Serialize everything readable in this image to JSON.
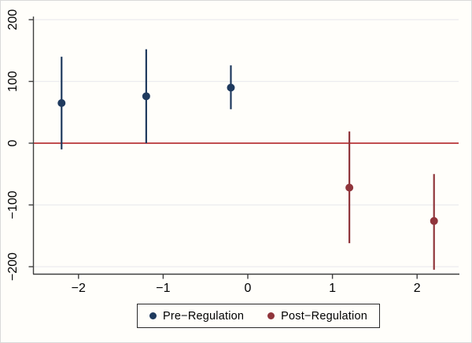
{
  "figure": {
    "background": "#fffefa",
    "border_color": "#d9d9d9"
  },
  "chart_data": {
    "type": "scatter",
    "subtype": "coefficient-plot-with-confidence-intervals",
    "title": "",
    "xlabel": "",
    "ylabel": "",
    "x_ticks": [
      -2,
      -1,
      0,
      1,
      2
    ],
    "y_ticks": [
      -200,
      -100,
      0,
      100,
      200
    ],
    "xlim": [
      -2.53,
      2.5
    ],
    "ylim": [
      -218,
      204
    ],
    "grid": true,
    "gridline_color": "#ececef",
    "axis_color": "#3f3f3f",
    "tick_label_color": "#000000",
    "zero_line": {
      "y": 0,
      "color": "#b83438"
    },
    "series": [
      {
        "name": "Pre−Regulation",
        "color": "#1f3a5e",
        "marker": "circle",
        "points": [
          {
            "x": -2.2,
            "y": 65,
            "ci_low": -10,
            "ci_high": 140
          },
          {
            "x": -1.2,
            "y": 76,
            "ci_low": 0,
            "ci_high": 152
          },
          {
            "x": -0.2,
            "y": 90,
            "ci_low": 55,
            "ci_high": 126
          }
        ]
      },
      {
        "name": "Post−Regulation",
        "color": "#90353b",
        "marker": "circle",
        "points": [
          {
            "x": 1.2,
            "y": -72,
            "ci_low": -162,
            "ci_high": 19
          },
          {
            "x": 2.2,
            "y": -126,
            "ci_low": -205,
            "ci_high": -50
          }
        ]
      }
    ],
    "legend": {
      "position": "bottom-center",
      "boxed": true
    }
  }
}
